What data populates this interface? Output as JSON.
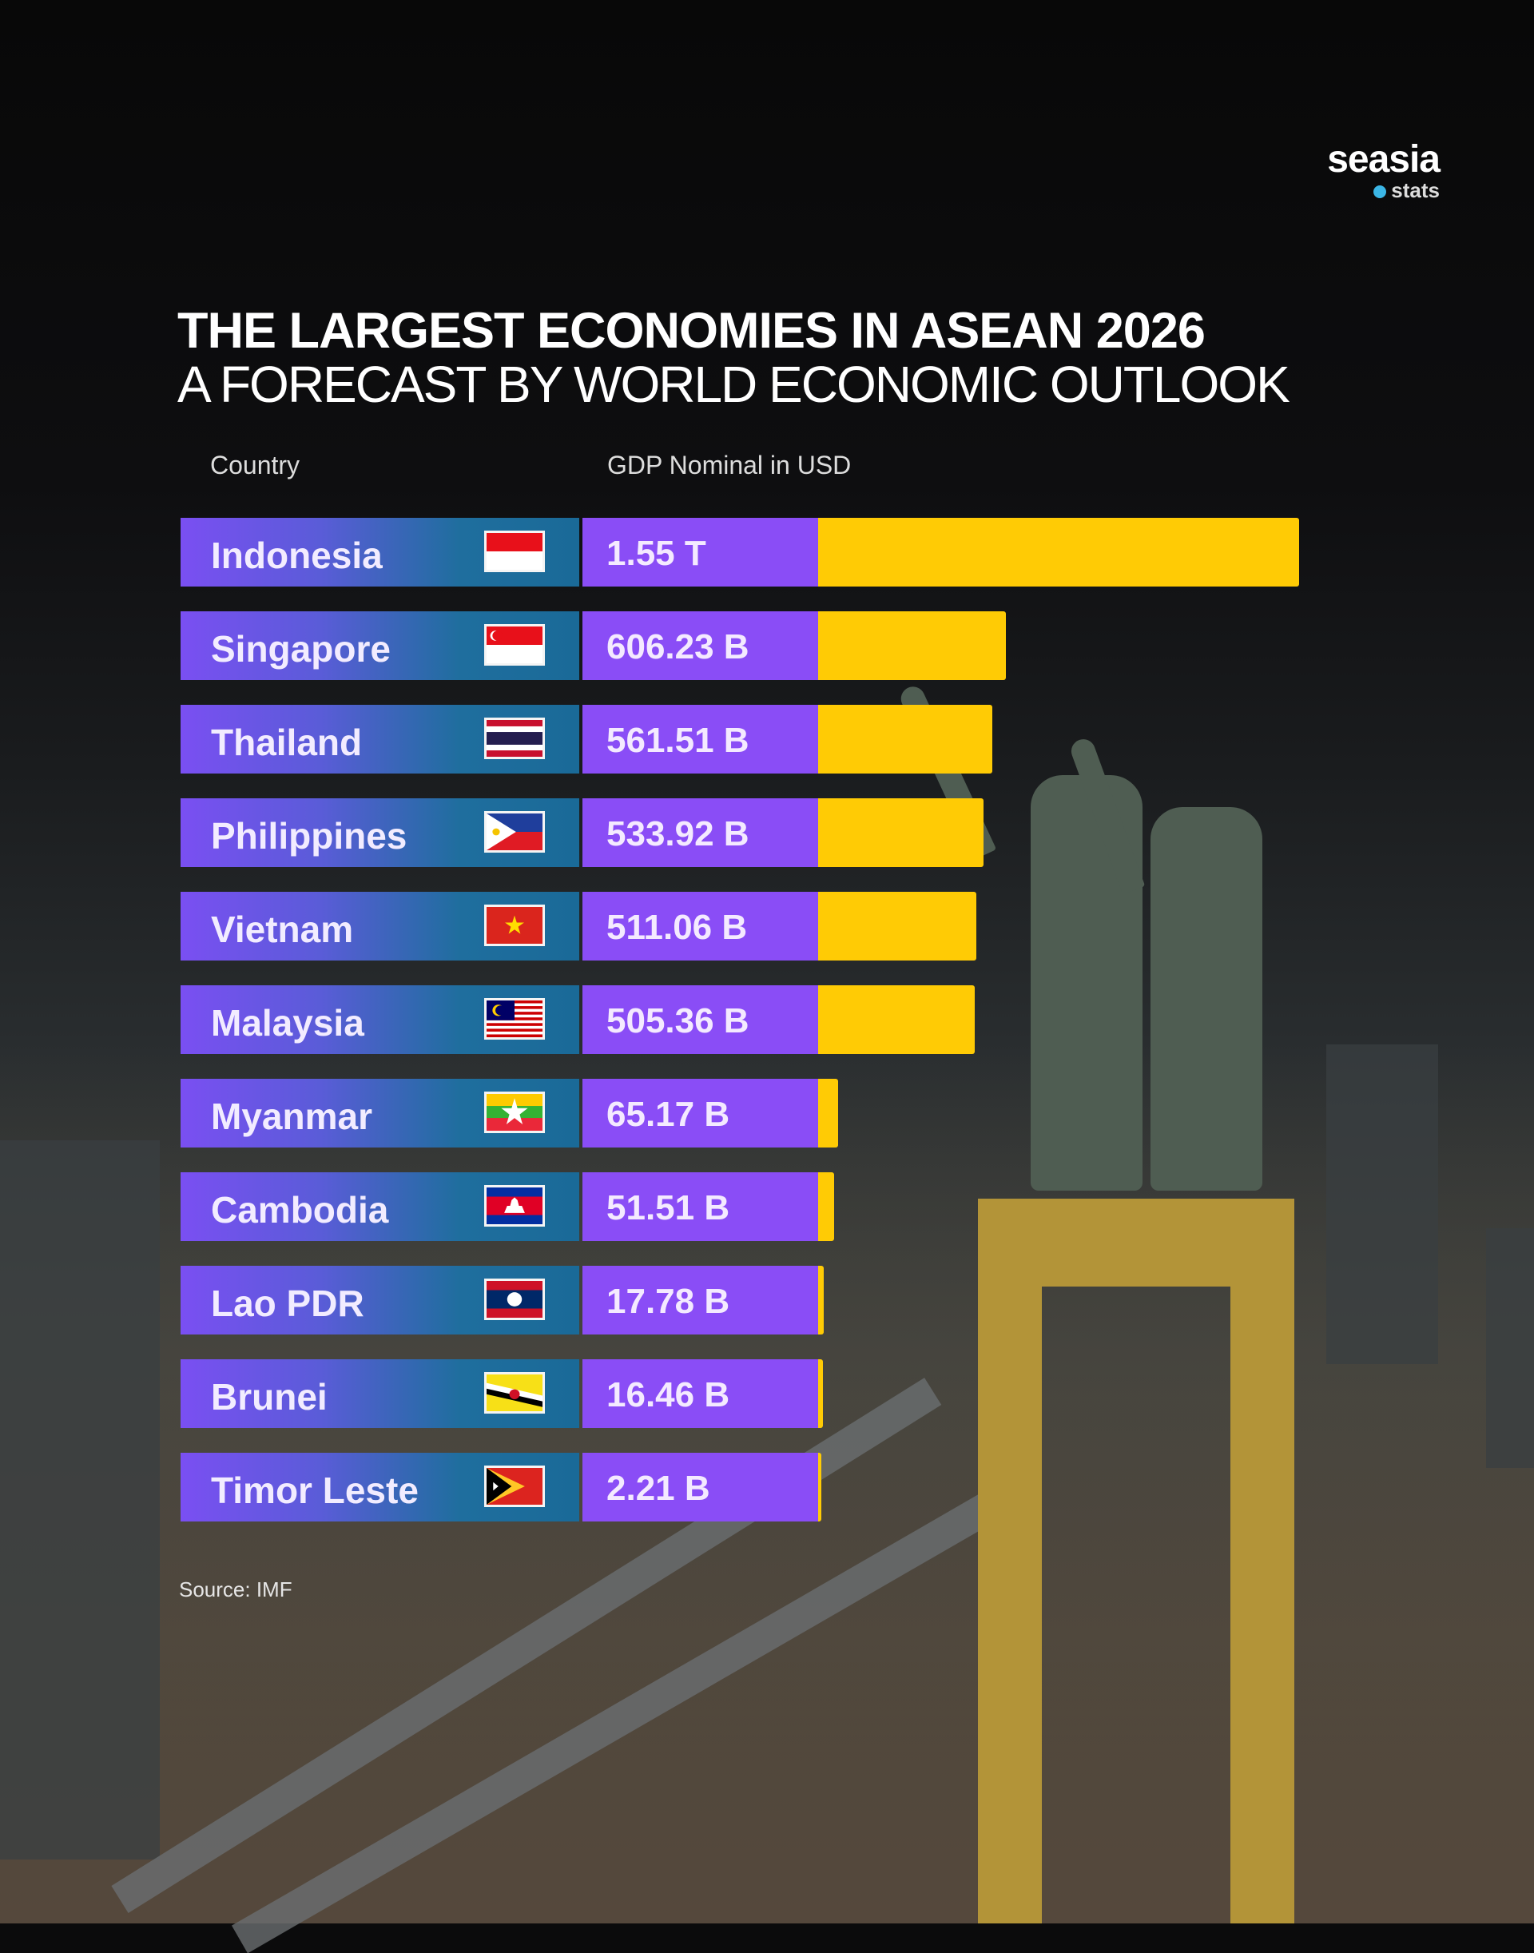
{
  "brand": {
    "name": "seasia",
    "sub": "stats",
    "dot_color": "#3bb6e6"
  },
  "header": {
    "title": "THE LARGEST ECONOMIES IN ASEAN 2026",
    "subtitle": "A FORECAST BY WORLD ECONOMIC OUTLOOK"
  },
  "columns": {
    "country": "Country",
    "gdp": "GDP Nominal in USD"
  },
  "source": "Source: IMF",
  "colors": {
    "bar": "#ffcb05",
    "value_cell": "#8a4df6",
    "country_cell_start": "#7a4ff2",
    "country_cell_end": "#1a6a98"
  },
  "chart_data": {
    "type": "bar",
    "orientation": "horizontal",
    "title": "THE LARGEST ECONOMIES IN ASEAN 2026",
    "subtitle": "A FORECAST BY WORLD ECONOMIC OUTLOOK",
    "xlabel": "GDP Nominal in USD",
    "ylabel": "Country",
    "unit": "billion USD",
    "grid": false,
    "categories": [
      "Indonesia",
      "Singapore",
      "Thailand",
      "Philippines",
      "Vietnam",
      "Malaysia",
      "Myanmar",
      "Cambodia",
      "Lao PDR",
      "Brunei",
      "Timor Leste"
    ],
    "values": [
      1550,
      606.23,
      561.51,
      533.92,
      511.06,
      505.36,
      65.17,
      51.51,
      17.78,
      16.46,
      2.21
    ],
    "labels": [
      "1.55 T",
      "606.23 B",
      "561.51 B",
      "533.92 B",
      "511.06 B",
      "505.36 B",
      "65.17 B",
      "51.51 B",
      "17.78 B",
      "16.46 B",
      "2.21 B"
    ],
    "flags": [
      "indonesia-flag-icon",
      "singapore-flag-icon",
      "thailand-flag-icon",
      "philippines-flag-icon",
      "vietnam-flag-icon",
      "malaysia-flag-icon",
      "myanmar-flag-icon",
      "cambodia-flag-icon",
      "laos-flag-icon",
      "brunei-flag-icon",
      "timor-leste-flag-icon"
    ]
  }
}
